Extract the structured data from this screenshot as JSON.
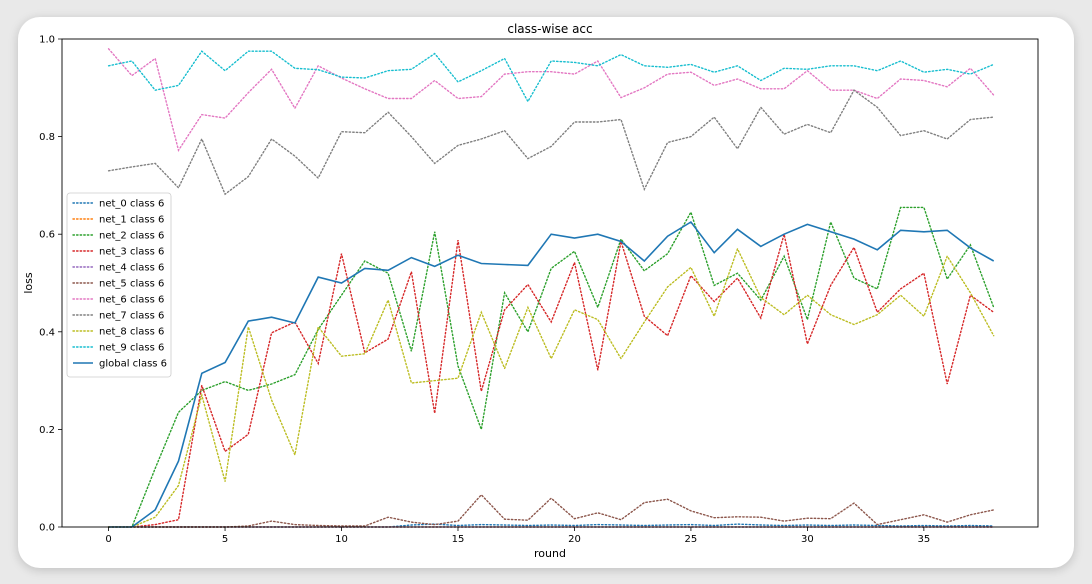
{
  "chart_data": {
    "type": "line",
    "title": "class-wise acc",
    "xlabel": "round",
    "ylabel": "loss",
    "xlim": [
      -2,
      39.9
    ],
    "ylim": [
      0,
      1
    ],
    "xticks": [
      0,
      5,
      10,
      15,
      20,
      25,
      30,
      35
    ],
    "yticks": [
      0.0,
      0.2,
      0.4,
      0.6,
      0.8,
      1.0
    ],
    "legend_position": "center-left",
    "x": [
      0,
      1,
      2,
      3,
      4,
      5,
      6,
      7,
      8,
      9,
      10,
      11,
      12,
      13,
      14,
      15,
      16,
      17,
      18,
      19,
      20,
      21,
      22,
      23,
      24,
      25,
      26,
      27,
      28,
      29,
      30,
      31,
      32,
      33,
      34,
      35,
      36,
      37,
      38
    ],
    "series": [
      {
        "name": "net_0 class 6",
        "color": "#1f77b4",
        "style": "dotted",
        "values": [
          0,
          0,
          0,
          0,
          0,
          0,
          0,
          0,
          0,
          0,
          0,
          0,
          0,
          0.004,
          0.006,
          0.003,
          0.005,
          0.004,
          0.003,
          0.004,
          0.003,
          0.005,
          0.004,
          0.003,
          0.004,
          0.005,
          0.003,
          0.006,
          0.004,
          0.003,
          0.004,
          0.003,
          0.004,
          0.003,
          0.002,
          0.003,
          0.002,
          0.003,
          0.002
        ]
      },
      {
        "name": "net_1 class 6",
        "color": "#ff7f0e",
        "style": "dotted",
        "values": [
          0,
          0,
          0,
          0,
          0,
          0,
          0,
          0,
          0,
          0,
          0,
          0,
          0,
          0,
          0,
          0,
          0,
          0,
          0,
          0,
          0,
          0,
          0,
          0,
          0,
          0,
          0,
          0,
          0,
          0,
          0,
          0,
          0,
          0,
          0,
          0,
          0,
          0,
          0
        ]
      },
      {
        "name": "net_2 class 6",
        "color": "#2ca02c",
        "style": "dotted",
        "values": [
          0,
          0,
          0.12,
          0.235,
          0.28,
          0.298,
          0.28,
          0.293,
          0.312,
          0.405,
          0.475,
          0.545,
          0.52,
          0.36,
          0.605,
          0.33,
          0.2,
          0.48,
          0.4,
          0.53,
          0.565,
          0.45,
          0.59,
          0.525,
          0.56,
          0.645,
          0.495,
          0.52,
          0.465,
          0.555,
          0.425,
          0.625,
          0.51,
          0.488,
          0.655,
          0.655,
          0.508,
          0.578,
          0.45
        ]
      },
      {
        "name": "net_3 class 6",
        "color": "#d62728",
        "style": "dotted",
        "values": [
          0,
          0,
          0.005,
          0.015,
          0.29,
          0.155,
          0.19,
          0.398,
          0.42,
          0.335,
          0.56,
          0.357,
          0.385,
          0.523,
          0.233,
          0.588,
          0.278,
          0.445,
          0.497,
          0.42,
          0.542,
          0.322,
          0.585,
          0.432,
          0.392,
          0.515,
          0.462,
          0.51,
          0.428,
          0.6,
          0.375,
          0.495,
          0.573,
          0.44,
          0.488,
          0.52,
          0.293,
          0.475,
          0.44
        ]
      },
      {
        "name": "net_4 class 6",
        "color": "#9467bd",
        "style": "dotted",
        "values": [
          0,
          0,
          0,
          0,
          0,
          0,
          0,
          0,
          0,
          0,
          0,
          0,
          0,
          0,
          0,
          0,
          0,
          0,
          0,
          0,
          0,
          0,
          0,
          0,
          0,
          0,
          0,
          0,
          0,
          0,
          0,
          0,
          0,
          0,
          0,
          0,
          0,
          0,
          0
        ]
      },
      {
        "name": "net_5 class 6",
        "color": "#8c564b",
        "style": "dotted",
        "values": [
          0,
          0,
          0,
          0,
          0,
          0,
          0.002,
          0.012,
          0.005,
          0.003,
          0.002,
          0.002,
          0.02,
          0.01,
          0.005,
          0.012,
          0.066,
          0.016,
          0.014,
          0.059,
          0.017,
          0.029,
          0.015,
          0.05,
          0.057,
          0.033,
          0.019,
          0.021,
          0.02,
          0.012,
          0.018,
          0.017,
          0.049,
          0.005,
          0.015,
          0.025,
          0.01,
          0.025,
          0.035
        ]
      },
      {
        "name": "net_6 class 6",
        "color": "#e377c2",
        "style": "dotted",
        "values": [
          0.98,
          0.925,
          0.96,
          0.772,
          0.845,
          0.838,
          0.89,
          0.938,
          0.858,
          0.945,
          0.92,
          0.898,
          0.878,
          0.878,
          0.915,
          0.878,
          0.882,
          0.928,
          0.933,
          0.933,
          0.928,
          0.955,
          0.88,
          0.9,
          0.928,
          0.932,
          0.905,
          0.918,
          0.898,
          0.898,
          0.935,
          0.895,
          0.895,
          0.878,
          0.918,
          0.915,
          0.902,
          0.94,
          0.885
        ]
      },
      {
        "name": "net_7 class 6",
        "color": "#7f7f7f",
        "style": "dotted",
        "values": [
          0.73,
          0.738,
          0.745,
          0.695,
          0.795,
          0.682,
          0.718,
          0.795,
          0.76,
          0.715,
          0.81,
          0.808,
          0.85,
          0.8,
          0.745,
          0.782,
          0.795,
          0.812,
          0.755,
          0.78,
          0.83,
          0.83,
          0.835,
          0.692,
          0.788,
          0.8,
          0.84,
          0.775,
          0.86,
          0.805,
          0.825,
          0.808,
          0.895,
          0.86,
          0.802,
          0.812,
          0.795,
          0.835,
          0.84
        ]
      },
      {
        "name": "net_8 class 6",
        "color": "#bcbd22",
        "style": "dotted",
        "values": [
          0,
          0,
          0.02,
          0.085,
          0.27,
          0.093,
          0.41,
          0.26,
          0.148,
          0.41,
          0.35,
          0.355,
          0.465,
          0.295,
          0.3,
          0.305,
          0.44,
          0.325,
          0.45,
          0.345,
          0.445,
          0.425,
          0.345,
          0.42,
          0.492,
          0.532,
          0.432,
          0.57,
          0.47,
          0.435,
          0.475,
          0.435,
          0.415,
          0.435,
          0.475,
          0.432,
          0.555,
          0.48,
          0.392
        ]
      },
      {
        "name": "net_9 class 6",
        "color": "#17becf",
        "style": "dotted",
        "values": [
          0.945,
          0.955,
          0.895,
          0.905,
          0.975,
          0.935,
          0.975,
          0.975,
          0.94,
          0.937,
          0.922,
          0.92,
          0.935,
          0.938,
          0.97,
          0.912,
          0.935,
          0.96,
          0.872,
          0.955,
          0.952,
          0.945,
          0.968,
          0.945,
          0.942,
          0.948,
          0.932,
          0.945,
          0.915,
          0.94,
          0.938,
          0.945,
          0.945,
          0.935,
          0.955,
          0.932,
          0.938,
          0.928,
          0.948
        ]
      },
      {
        "name": "global class 6",
        "color": "#1f77b4",
        "style": "solid",
        "values": [
          0,
          0,
          0.035,
          0.135,
          0.315,
          0.337,
          0.422,
          0.43,
          0.418,
          0.512,
          0.5,
          0.53,
          0.526,
          0.552,
          0.534,
          0.557,
          0.54,
          0.538,
          0.536,
          0.6,
          0.592,
          0.6,
          0.585,
          0.545,
          0.596,
          0.625,
          0.562,
          0.61,
          0.575,
          0.6,
          0.62,
          0.605,
          0.59,
          0.568,
          0.608,
          0.605,
          0.608,
          0.572,
          0.545
        ]
      }
    ]
  }
}
